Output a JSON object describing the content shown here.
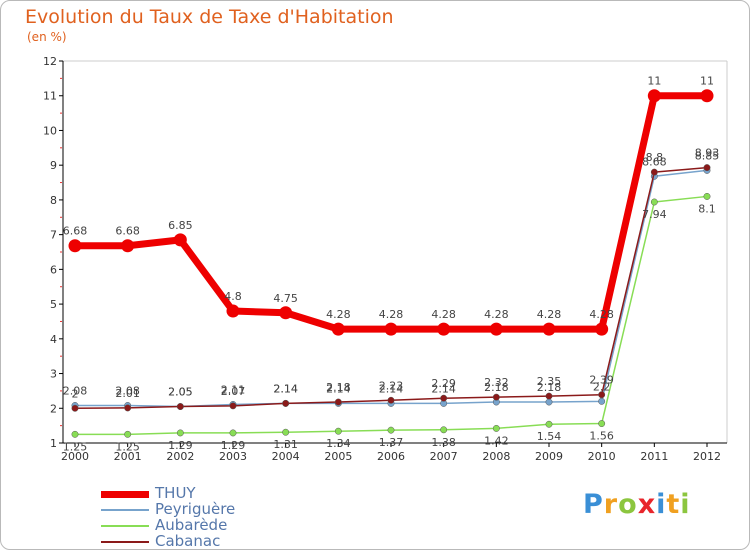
{
  "title": "Evolution du Taux de Taxe d'Habitation",
  "subtitle": "(en %)",
  "chart_data": {
    "type": "line",
    "title": "Evolution du Taux de Taxe d'Habitation",
    "ylabel": "(en %)",
    "xlabel": "",
    "ylim": [
      1,
      12
    ],
    "yticks": [
      1,
      2,
      3,
      4,
      5,
      6,
      7,
      8,
      9,
      10,
      11,
      12
    ],
    "categories": [
      "2000",
      "2001",
      "2002",
      "2003",
      "2004",
      "2005",
      "2006",
      "2007",
      "2008",
      "2009",
      "2010",
      "2011",
      "2012"
    ],
    "series": [
      {
        "name": "THUY",
        "color": "#ee0000",
        "values": [
          6.68,
          6.68,
          6.85,
          4.8,
          4.75,
          4.28,
          4.28,
          4.28,
          4.28,
          4.28,
          4.28,
          11,
          11
        ]
      },
      {
        "name": "Peyriguère",
        "color": "#77a3cc",
        "values": [
          2.08,
          2.08,
          2.05,
          2.11,
          2.14,
          2.14,
          2.14,
          2.14,
          2.18,
          2.18,
          2.2,
          8.68,
          8.85
        ]
      },
      {
        "name": "Aubarède",
        "color": "#88dd55",
        "values": [
          1.25,
          1.25,
          1.29,
          1.29,
          1.31,
          1.34,
          1.37,
          1.38,
          1.42,
          1.54,
          1.56,
          7.94,
          8.1
        ]
      },
      {
        "name": "Cabanac",
        "color": "#8b1a1a",
        "values": [
          2,
          2.01,
          2.05,
          2.07,
          2.14,
          2.18,
          2.23,
          2.29,
          2.32,
          2.35,
          2.39,
          8.8,
          8.93
        ]
      }
    ]
  },
  "logo": {
    "letters": [
      "P",
      "r",
      "o",
      "x",
      "i",
      "t",
      "i"
    ],
    "colors": [
      "#3a8fd6",
      "#f0a020",
      "#8cc63f",
      "#e8252b",
      "#3a8fd6",
      "#f0a020",
      "#8cc63f"
    ]
  }
}
